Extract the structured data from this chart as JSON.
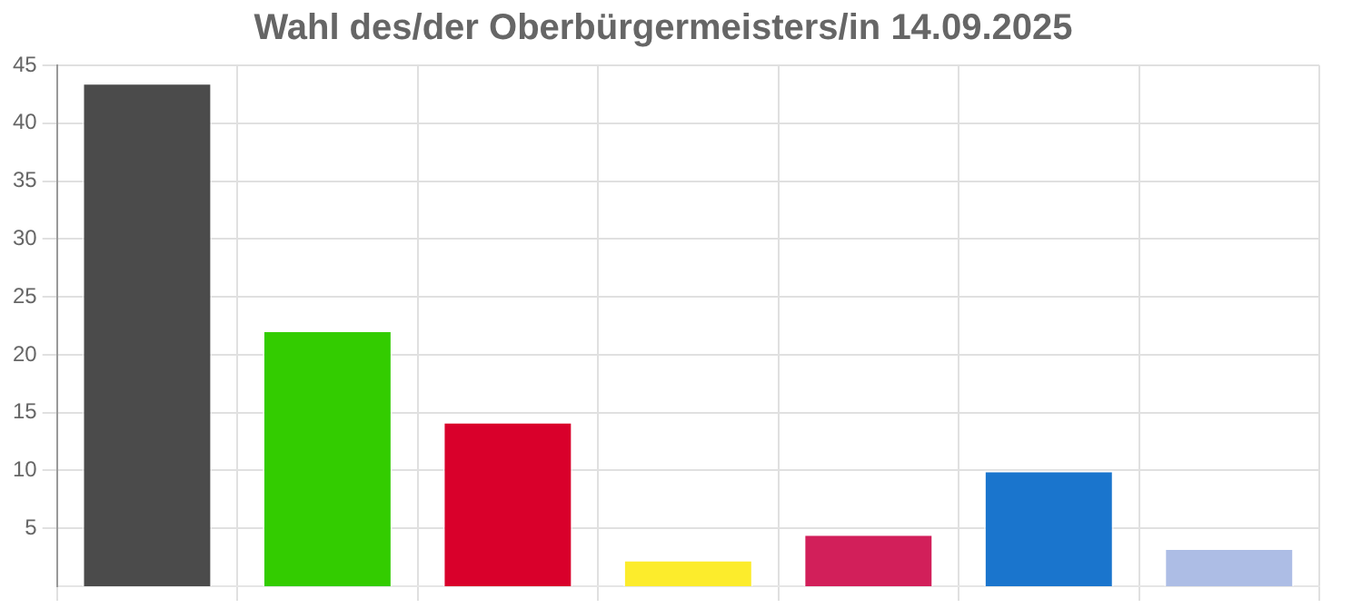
{
  "chart_data": {
    "type": "bar",
    "title": "Wahl des/der Oberbürgermeisters/in 14.09.2025",
    "categories": [
      null,
      null,
      null,
      null,
      null,
      null,
      null
    ],
    "values": [
      43.5,
      22.1,
      14.2,
      2.3,
      4.5,
      10.0,
      3.3
    ],
    "colors": [
      "#4b4b4b",
      "#33cc00",
      "#d9002b",
      "#fcec2c",
      "#d21f5a",
      "#1a75cd",
      "#adbde5"
    ],
    "ylim": [
      0,
      45
    ],
    "yticks": [
      5,
      10,
      15,
      20,
      25,
      30,
      35,
      40,
      45
    ],
    "grid": true
  }
}
